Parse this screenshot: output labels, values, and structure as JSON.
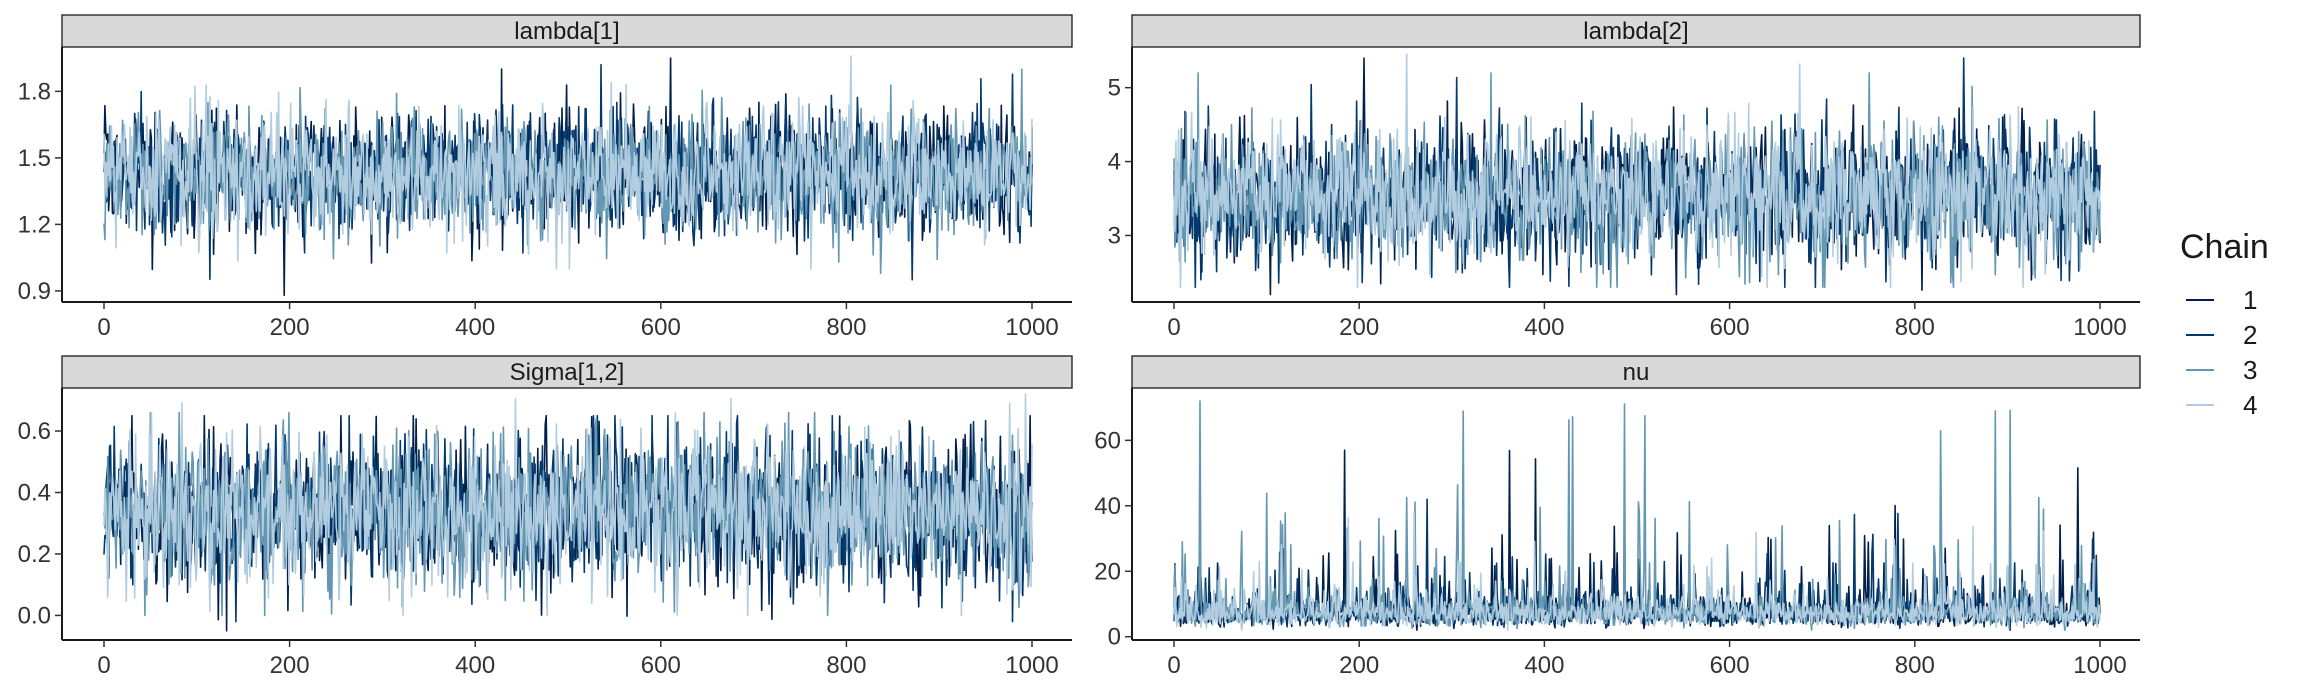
{
  "chart_data": [
    {
      "type": "line",
      "title": "lambda[1]",
      "x_range": [
        0,
        1000
      ],
      "ylim": [
        0.85,
        2.0
      ],
      "x_ticks": [
        0,
        200,
        400,
        600,
        800,
        1000
      ],
      "y_ticks": [
        0.9,
        1.2,
        1.5,
        1.8
      ],
      "y_tick_labels": [
        "0.9",
        "1.2",
        "1.5",
        "1.8"
      ],
      "grid": false,
      "series": [
        {
          "name": "1",
          "color": "#011f4b",
          "trace": {
            "n": 1000,
            "mean": 1.43,
            "sd": 0.14,
            "min": 0.88,
            "max": 1.95
          }
        },
        {
          "name": "2",
          "color": "#03396c",
          "trace": {
            "n": 1000,
            "mean": 1.43,
            "sd": 0.14,
            "min": 0.95,
            "max": 1.92
          }
        },
        {
          "name": "3",
          "color": "#6497b1",
          "trace": {
            "n": 1000,
            "mean": 1.43,
            "sd": 0.14,
            "min": 0.98,
            "max": 1.9
          }
        },
        {
          "name": "4",
          "color": "#b3cde0",
          "trace": {
            "n": 1000,
            "mean": 1.43,
            "sd": 0.14,
            "min": 1.0,
            "max": 1.96
          }
        }
      ]
    },
    {
      "type": "line",
      "title": "lambda[2]",
      "x_range": [
        0,
        1000
      ],
      "ylim": [
        2.1,
        5.55
      ],
      "x_ticks": [
        0,
        200,
        400,
        600,
        800,
        1000
      ],
      "y_ticks": [
        3,
        4,
        5
      ],
      "y_tick_labels": [
        "3",
        "4",
        "5"
      ],
      "grid": false,
      "series": [
        {
          "name": "1",
          "color": "#011f4b",
          "trace": {
            "n": 1000,
            "mean": 3.55,
            "sd": 0.45,
            "min": 2.2,
            "max": 5.4
          }
        },
        {
          "name": "2",
          "color": "#03396c",
          "trace": {
            "n": 1000,
            "mean": 3.55,
            "sd": 0.45,
            "min": 2.3,
            "max": 5.4
          }
        },
        {
          "name": "3",
          "color": "#6497b1",
          "trace": {
            "n": 1000,
            "mean": 3.55,
            "sd": 0.45,
            "min": 2.3,
            "max": 5.2
          }
        },
        {
          "name": "4",
          "color": "#b3cde0",
          "trace": {
            "n": 1000,
            "mean": 3.55,
            "sd": 0.45,
            "min": 2.3,
            "max": 5.45
          }
        }
      ]
    },
    {
      "type": "line",
      "title": "Sigma[1,2]",
      "x_range": [
        0,
        1000
      ],
      "ylim": [
        -0.08,
        0.74
      ],
      "x_ticks": [
        0,
        200,
        400,
        600,
        800,
        1000
      ],
      "y_ticks": [
        0.0,
        0.2,
        0.4,
        0.6
      ],
      "y_tick_labels": [
        "0.0",
        "0.2",
        "0.4",
        "0.6"
      ],
      "grid": false,
      "series": [
        {
          "name": "1",
          "color": "#011f4b",
          "trace": {
            "n": 1000,
            "mean": 0.34,
            "sd": 0.12,
            "min": -0.05,
            "max": 0.65
          }
        },
        {
          "name": "2",
          "color": "#03396c",
          "trace": {
            "n": 1000,
            "mean": 0.34,
            "sd": 0.12,
            "min": -0.02,
            "max": 0.65
          }
        },
        {
          "name": "3",
          "color": "#6497b1",
          "trace": {
            "n": 1000,
            "mean": 0.34,
            "sd": 0.12,
            "min": 0.0,
            "max": 0.66
          }
        },
        {
          "name": "4",
          "color": "#b3cde0",
          "trace": {
            "n": 1000,
            "mean": 0.34,
            "sd": 0.12,
            "min": 0.0,
            "max": 0.72
          }
        }
      ]
    },
    {
      "type": "line",
      "title": "nu",
      "x_range": [
        0,
        1000
      ],
      "ylim": [
        -1,
        76
      ],
      "x_ticks": [
        0,
        200,
        400,
        600,
        800,
        1000
      ],
      "y_ticks": [
        0,
        20,
        40,
        60
      ],
      "y_tick_labels": [
        "0",
        "20",
        "40",
        "60"
      ],
      "grid": false,
      "series": [
        {
          "name": "1",
          "color": "#011f4b",
          "trace": {
            "n": 1000,
            "median": 7,
            "min": 2,
            "max": 57
          }
        },
        {
          "name": "2",
          "color": "#03396c",
          "trace": {
            "n": 1000,
            "median": 7,
            "min": 2,
            "max": 42
          }
        },
        {
          "name": "3",
          "color": "#6497b1",
          "trace": {
            "n": 1000,
            "median": 7,
            "min": 2,
            "max": 72
          }
        },
        {
          "name": "4",
          "color": "#b3cde0",
          "trace": {
            "n": 1000,
            "median": 7,
            "min": 2,
            "max": 38
          }
        }
      ]
    }
  ],
  "legend": {
    "title": "Chain",
    "position": "right",
    "items": [
      {
        "label": "1",
        "color": "#011f4b"
      },
      {
        "label": "2",
        "color": "#03396c"
      },
      {
        "label": "3",
        "color": "#6497b1"
      },
      {
        "label": "4",
        "color": "#b3cde0"
      }
    ]
  }
}
